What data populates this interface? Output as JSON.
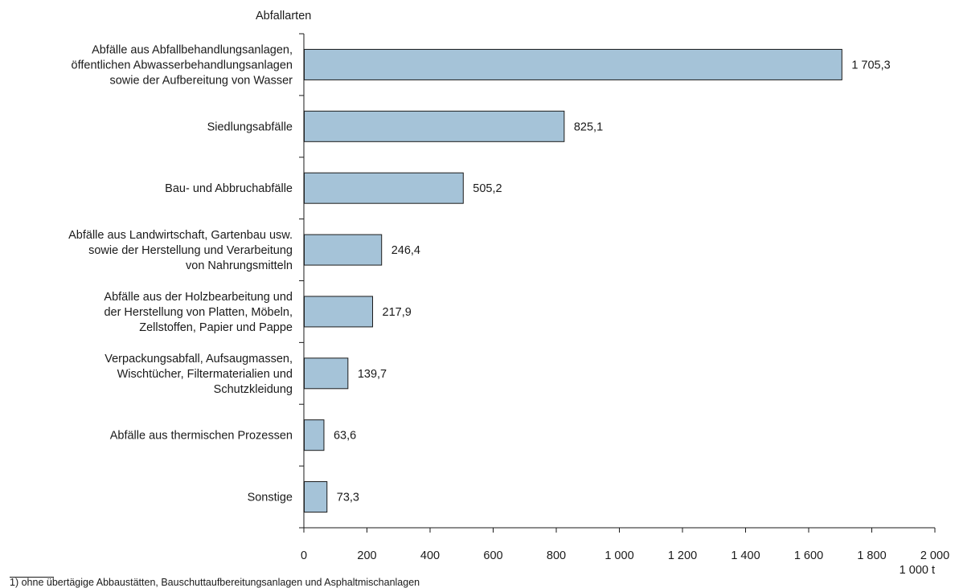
{
  "chart_data": {
    "type": "bar",
    "orientation": "horizontal",
    "title": "",
    "y_axis_title": "Abfallarten",
    "x_unit": "1 000 t",
    "xlim": [
      0,
      2000
    ],
    "x_ticks": [
      "0",
      "200",
      "400",
      "600",
      "800",
      "1 000",
      "1 200",
      "1 400",
      "1 600",
      "1 800",
      "2 000"
    ],
    "categories": [
      [
        "Abfälle aus Abfallbehandlungsanlagen,",
        "öffentlichen Abwasserbehandlungsanlagen",
        "sowie der Aufbereitung von Wasser"
      ],
      [
        "Siedlungsabfälle"
      ],
      [
        "Bau- und Abbruchabfälle"
      ],
      [
        "Abfälle aus Landwirtschaft, Gartenbau usw.",
        "sowie der Herstellung und Verarbeitung",
        "von Nahrungsmitteln"
      ],
      [
        "Abfälle aus der Holzbearbeitung und",
        "der Herstellung von Platten, Möbeln,",
        "Zellstoffen, Papier und Pappe"
      ],
      [
        "Verpackungsabfall, Aufsaugmassen,",
        "Wischtücher, Filtermaterialien und",
        "Schutzkleidung"
      ],
      [
        "Abfälle aus thermischen Prozessen"
      ],
      [
        "Sonstige"
      ]
    ],
    "values": [
      1705.3,
      825.1,
      505.2,
      246.4,
      217.9,
      139.7,
      63.6,
      73.3
    ],
    "value_labels": [
      "1 705,3",
      "825,1",
      "505,2",
      "246,4",
      "217,9",
      "139,7",
      "63,6",
      "73,3"
    ],
    "grid": false,
    "legend": "none",
    "bar_color": "#a5c3d8",
    "bar_edge_color": "#1a1a1a"
  },
  "footnote": "1) ohne übertägige Abbaustätten, Bauschuttaufbereitungsanlagen und Asphaltmischanlagen"
}
